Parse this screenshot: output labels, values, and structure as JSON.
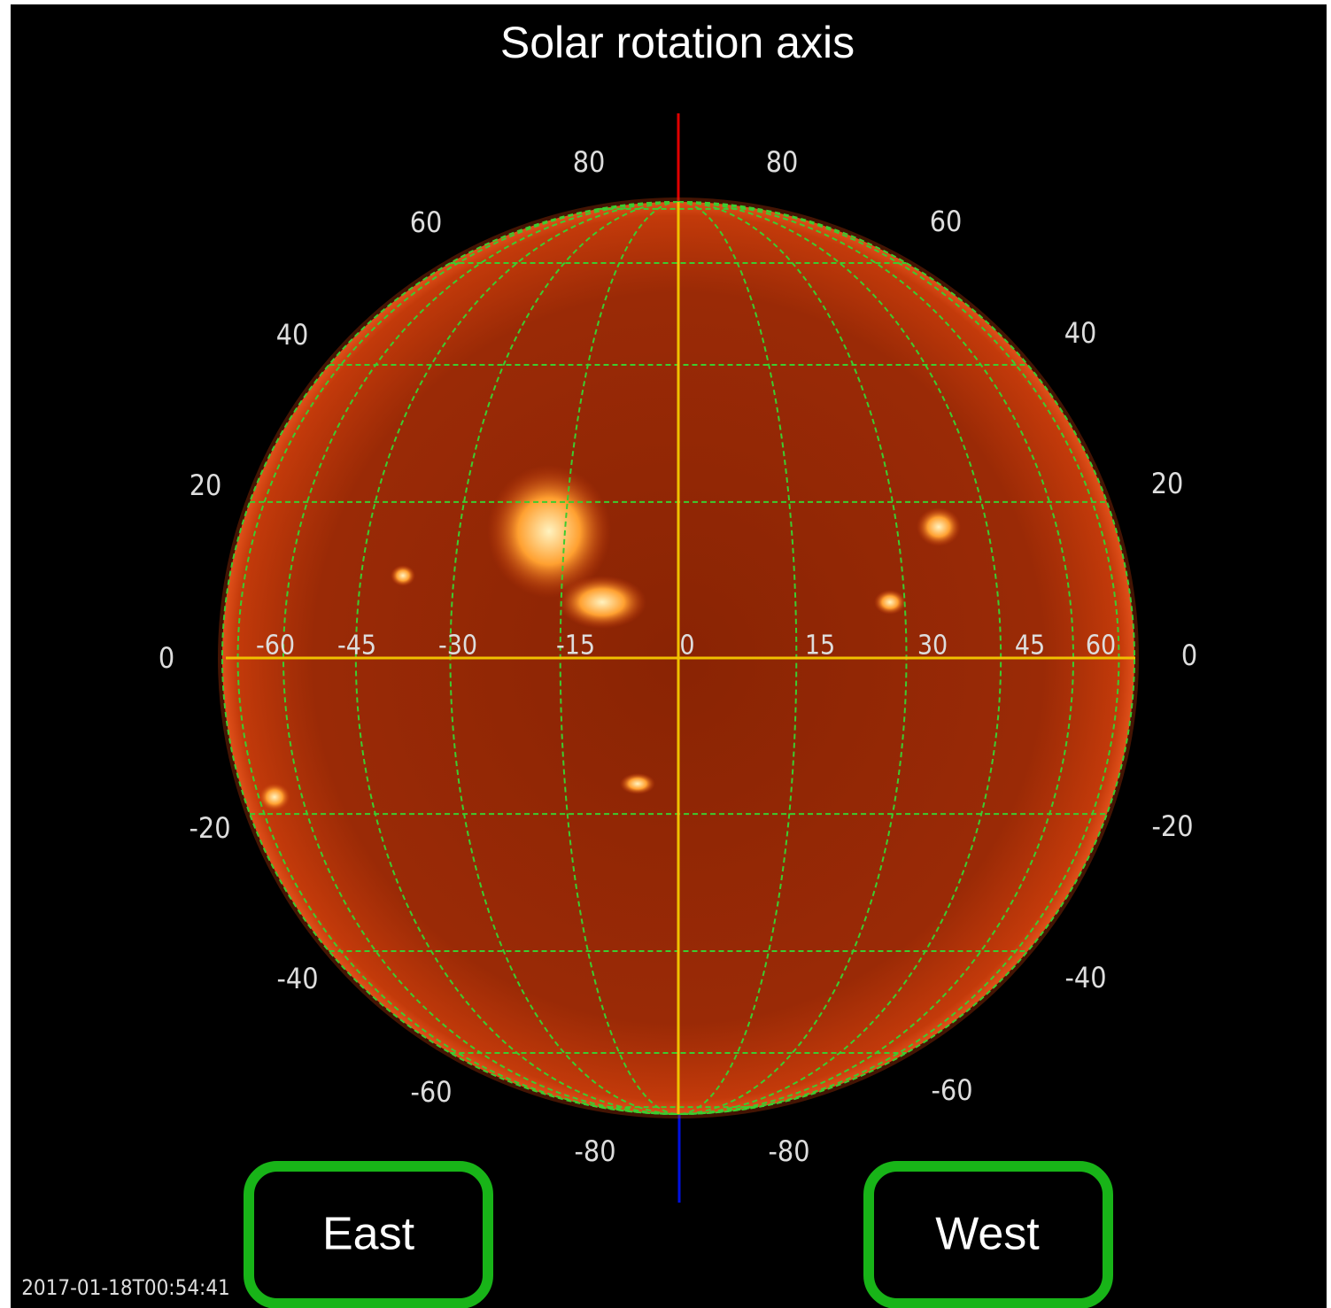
{
  "title": "Solar rotation axis",
  "latitude_labels_left": [
    "80",
    "60",
    "40",
    "20",
    "0",
    "-20",
    "-40",
    "-60",
    "-80"
  ],
  "latitude_labels_right": [
    "80",
    "60",
    "40",
    "20",
    "0",
    "-20",
    "-40",
    "-60",
    "-80"
  ],
  "longitude_labels": [
    "-60",
    "-45",
    "-30",
    "-15",
    "0",
    "15",
    "30",
    "45",
    "60"
  ],
  "buttons": {
    "east": "East",
    "west": "West"
  },
  "timestamp": "2017-01-18T00:54:41"
}
